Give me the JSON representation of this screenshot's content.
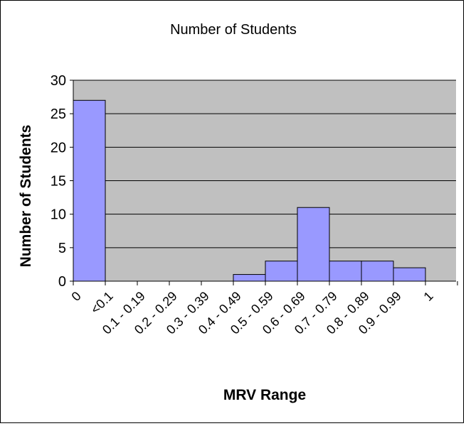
{
  "chart_data": {
    "type": "bar",
    "title": "Number of Students",
    "xlabel": "MRV Range",
    "ylabel": "Number of Students",
    "ylim": [
      0,
      30
    ],
    "y_ticks": [
      "0",
      "5",
      "10",
      "15",
      "20",
      "25",
      "30"
    ],
    "x_tick_labels": [
      "0",
      "<0.1",
      "0.1 - 0.19",
      "0.2 - 0.29",
      "0.3 - 0.39",
      "0.4 - 0.49",
      "0.5 - 0.59",
      "0.6 - 0.69",
      "0.7 - 0.79",
      "0.8 - 0.89",
      "0.9 - 0.99",
      "1"
    ],
    "categories": [
      "0",
      "<0.1",
      "0.1 - 0.19",
      "0.2 - 0.29",
      "0.3 - 0.39",
      "0.4 - 0.49",
      "0.5 - 0.59",
      "0.6 - 0.69",
      "0.7 - 0.79",
      "0.8 - 0.89",
      "0.9 - 0.99",
      "1"
    ],
    "values": [
      27,
      0,
      0,
      0,
      0,
      1,
      3,
      11,
      3,
      3,
      2,
      0
    ],
    "grid": true,
    "legend": "none",
    "colors": {
      "bar_fill": "#9999ff",
      "bar_stroke": "#000000",
      "plot_bg": "#c0c0c0",
      "grid": "#000000"
    }
  }
}
